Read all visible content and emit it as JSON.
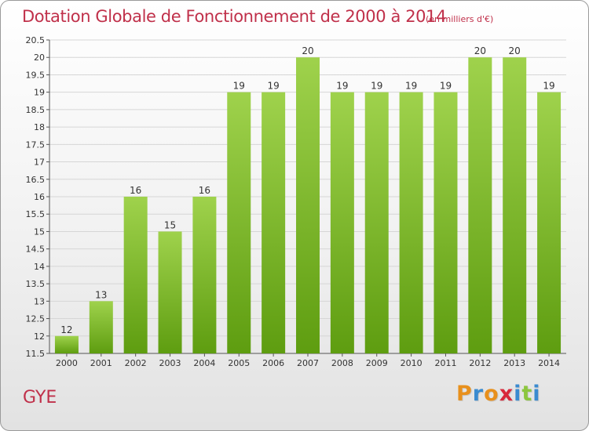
{
  "title": "Dotation Globale de Fonctionnement de 2000 à 2014",
  "unit_note": "(en milliers d'€)",
  "city": "GYE",
  "brand": {
    "letters": [
      "P",
      "r",
      "o",
      "x",
      "i",
      "t",
      "i"
    ],
    "colors": [
      "#e8901c",
      "#3a8bd0",
      "#e8901c",
      "#d8283a",
      "#3a8bd0",
      "#8cc63e",
      "#3a8bd0"
    ]
  },
  "colors": {
    "title": "#c0304a",
    "bar_top": "#9fd24c",
    "bar_bottom": "#5e9d10",
    "grid": "#d6d6d6"
  },
  "chart_data": {
    "type": "bar",
    "title": "Dotation Globale de Fonctionnement de 2000 à 2014",
    "xlabel": "",
    "ylabel": "",
    "categories": [
      "2000",
      "2001",
      "2002",
      "2003",
      "2004",
      "2005",
      "2006",
      "2007",
      "2008",
      "2009",
      "2010",
      "2011",
      "2012",
      "2013",
      "2014"
    ],
    "values": [
      12,
      13,
      16,
      15,
      16,
      19,
      19,
      20,
      19,
      19,
      19,
      19,
      20,
      20,
      19
    ],
    "ylim": [
      11.5,
      20.5
    ],
    "yticks": [
      "11.5",
      "12",
      "12.5",
      "13",
      "13.5",
      "14",
      "14.5",
      "15",
      "15.5",
      "16",
      "16.5",
      "17",
      "17.5",
      "18",
      "18.5",
      "19",
      "19.5",
      "20",
      "20.5"
    ],
    "grid": true
  }
}
